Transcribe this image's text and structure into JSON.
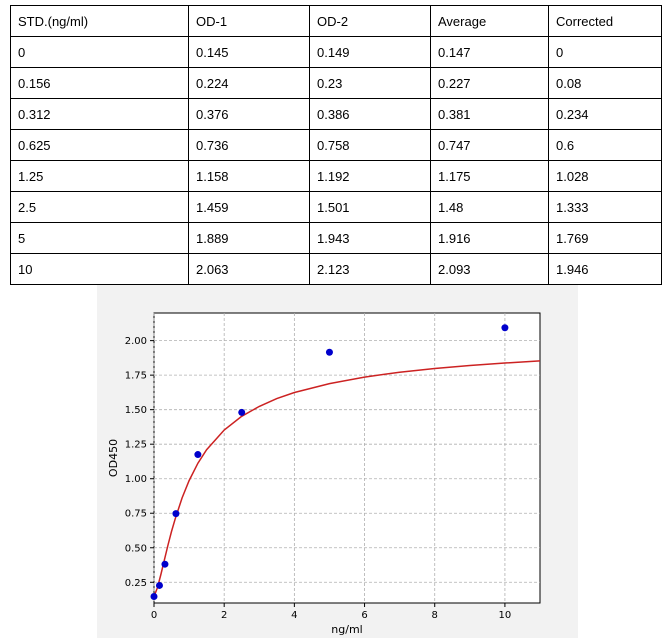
{
  "table": {
    "headers": [
      "STD.(ng/ml)",
      "OD-1",
      "OD-2",
      "Average",
      "Corrected"
    ],
    "rows": [
      [
        "0",
        "0.145",
        "0.149",
        "0.147",
        "0"
      ],
      [
        "0.156",
        "0.224",
        "0.23",
        "0.227",
        "0.08"
      ],
      [
        "0.312",
        "0.376",
        "0.386",
        "0.381",
        "0.234"
      ],
      [
        "0.625",
        "0.736",
        "0.758",
        "0.747",
        "0.6"
      ],
      [
        "1.25",
        "1.158",
        "1.192",
        "1.175",
        "1.028"
      ],
      [
        "2.5",
        "1.459",
        "1.501",
        "1.48",
        "1.333"
      ],
      [
        "5",
        "1.889",
        "1.943",
        "1.916",
        "1.769"
      ],
      [
        "10",
        "2.063",
        "2.123",
        "2.093",
        "1.946"
      ]
    ]
  },
  "chart_data": {
    "type": "scatter",
    "title": "",
    "xlabel": "ng/ml",
    "ylabel": "OD450",
    "xlim": [
      0,
      11
    ],
    "ylim": [
      0.1,
      2.2
    ],
    "xticks": [
      0,
      2,
      4,
      6,
      8,
      10
    ],
    "yticks": [
      0.25,
      0.5,
      0.75,
      1.0,
      1.25,
      1.5,
      1.75,
      2.0
    ],
    "xtick_labels": [
      "0",
      "2",
      "4",
      "6",
      "8",
      "10"
    ],
    "ytick_labels": [
      "0.25",
      "0.50",
      "0.75",
      "1.00",
      "1.25",
      "1.50",
      "1.75",
      "2.00"
    ],
    "grid": true,
    "points": {
      "x": [
        0,
        0.156,
        0.312,
        0.625,
        1.25,
        2.5,
        5,
        10
      ],
      "y": [
        0.147,
        0.227,
        0.381,
        0.747,
        1.175,
        1.48,
        1.916,
        2.093
      ],
      "color": "#0000cc"
    },
    "fit_curve": {
      "x": [
        0,
        0.1,
        0.2,
        0.3,
        0.4,
        0.5,
        0.6,
        0.8,
        1.0,
        1.25,
        1.5,
        2.0,
        2.5,
        3.0,
        3.5,
        4.0,
        5.0,
        6.0,
        7.0,
        8.0,
        9.0,
        10.0,
        11.0
      ],
      "y": [
        0.147,
        0.212,
        0.31,
        0.416,
        0.52,
        0.618,
        0.707,
        0.861,
        0.986,
        1.112,
        1.21,
        1.353,
        1.452,
        1.524,
        1.58,
        1.624,
        1.689,
        1.736,
        1.771,
        1.798,
        1.82,
        1.838,
        1.853
      ],
      "color": "#cc2222"
    },
    "plot_background": "#ffffff",
    "panel_background": "#f2f2f2"
  }
}
